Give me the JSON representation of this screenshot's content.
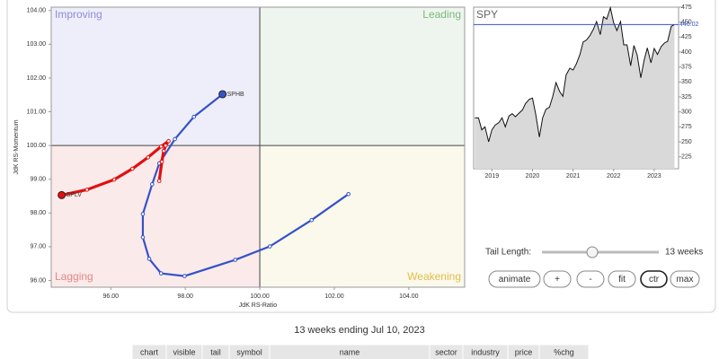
{
  "chart_data": [
    {
      "type": "line",
      "xlabel": "JdK RS-Ratio",
      "ylabel": "JdK RS-Momentum",
      "quadrants": [
        {
          "name": "Improving",
          "color": "#eeeefa",
          "text_color": "#8c8cd8"
        },
        {
          "name": "Leading",
          "color": "#eef5ee",
          "text_color": "#7db87d"
        },
        {
          "name": "Lagging",
          "color": "#fbeaea",
          "text_color": "#e08888"
        },
        {
          "name": "Weakening",
          "color": "#fbf8ec",
          "text_color": "#e0bf4a"
        }
      ],
      "center_x": 100,
      "center_y": 100,
      "xlim": [
        94.4,
        105.5
      ],
      "ylim": [
        95.8,
        104.1
      ],
      "xticks": [
        {
          "value": 96,
          "label": "96.00"
        },
        {
          "value": 98,
          "label": "98.00"
        },
        {
          "value": 100,
          "label": "100.00"
        },
        {
          "value": 102,
          "label": "102.00"
        },
        {
          "value": 104,
          "label": "104.00"
        }
      ],
      "yticks": [
        {
          "value": 96,
          "label": "96.00"
        },
        {
          "value": 97,
          "label": "97.00"
        },
        {
          "value": 98,
          "label": "98.00"
        },
        {
          "value": 99,
          "label": "99.00"
        },
        {
          "value": 100,
          "label": "100.00"
        },
        {
          "value": 101,
          "label": "101.00"
        },
        {
          "value": 102,
          "label": "102.00"
        },
        {
          "value": 103,
          "label": "103.00"
        },
        {
          "value": 104,
          "label": "104.00"
        }
      ],
      "series": [
        {
          "name": "SPHB",
          "color": "#3552c8",
          "x": [
            102.38,
            101.39,
            100.27,
            99.34,
            97.98,
            97.35,
            97.03,
            96.86,
            96.86,
            97.11,
            97.3,
            97.72,
            98.23,
            99.0
          ],
          "values": [
            98.56,
            97.79,
            97.01,
            96.61,
            96.13,
            96.21,
            96.64,
            97.28,
            97.97,
            98.85,
            99.47,
            100.19,
            100.85,
            101.52
          ]
        },
        {
          "name": "SPLV",
          "color": "#e01010",
          "x": [
            97.3,
            97.37,
            97.42,
            97.47,
            97.55,
            97.35,
            97.0,
            96.58,
            96.09,
            95.36,
            94.68
          ],
          "values": [
            98.95,
            99.52,
            99.84,
            100.0,
            100.13,
            99.97,
            99.65,
            99.31,
            98.99,
            98.69,
            98.53
          ]
        }
      ]
    },
    {
      "type": "area",
      "title": "SPY",
      "color": "#d9d9d9",
      "x": [
        2018.58,
        2018.67,
        2018.75,
        2018.83,
        2018.92,
        2019.0,
        2019.08,
        2019.17,
        2019.25,
        2019.33,
        2019.42,
        2019.5,
        2019.58,
        2019.67,
        2019.75,
        2019.83,
        2019.92,
        2020.0,
        2020.08,
        2020.17,
        2020.25,
        2020.33,
        2020.42,
        2020.5,
        2020.58,
        2020.67,
        2020.75,
        2020.83,
        2020.92,
        2021.0,
        2021.08,
        2021.17,
        2021.25,
        2021.33,
        2021.42,
        2021.5,
        2021.58,
        2021.67,
        2021.75,
        2021.83,
        2021.92,
        2022.0,
        2022.08,
        2022.17,
        2022.25,
        2022.33,
        2022.42,
        2022.5,
        2022.58,
        2022.67,
        2022.75,
        2022.83,
        2022.92,
        2023.0,
        2023.08,
        2023.17,
        2023.25,
        2023.33,
        2023.42,
        2023.5
      ],
      "values": [
        290,
        290,
        270,
        275,
        250,
        270,
        278,
        282,
        290,
        275,
        293,
        297,
        292,
        298,
        303,
        314,
        321,
        323,
        296,
        258,
        290,
        304,
        308,
        326,
        349,
        334,
        326,
        362,
        373,
        370,
        380,
        396,
        417,
        420,
        428,
        438,
        451,
        429,
        459,
        455,
        474,
        449,
        436,
        451,
        412,
        412,
        377,
        411,
        395,
        357,
        386,
        407,
        382,
        406,
        396,
        409,
        415,
        418,
        443,
        446
      ],
      "last_value": 446.02,
      "xlim": [
        2018.55,
        2023.6
      ],
      "ylim": [
        205,
        475
      ],
      "xticks": [
        2019,
        2020,
        2021,
        2022,
        2023
      ],
      "yticks": [
        225,
        250,
        275,
        300,
        325,
        350,
        375,
        400,
        425,
        450,
        475
      ]
    }
  ],
  "controls": {
    "tail_label": "Tail Length:",
    "tail_value": "13 weeks",
    "buttons": [
      "animate",
      "+",
      "-",
      "fit",
      "ctr",
      "max"
    ]
  },
  "caption": "13 weeks ending Jul 10, 2023",
  "table": {
    "headers": [
      "chart",
      "visible",
      "tail",
      "symbol",
      "name",
      "sector",
      "industry",
      "price",
      "%chg"
    ]
  }
}
